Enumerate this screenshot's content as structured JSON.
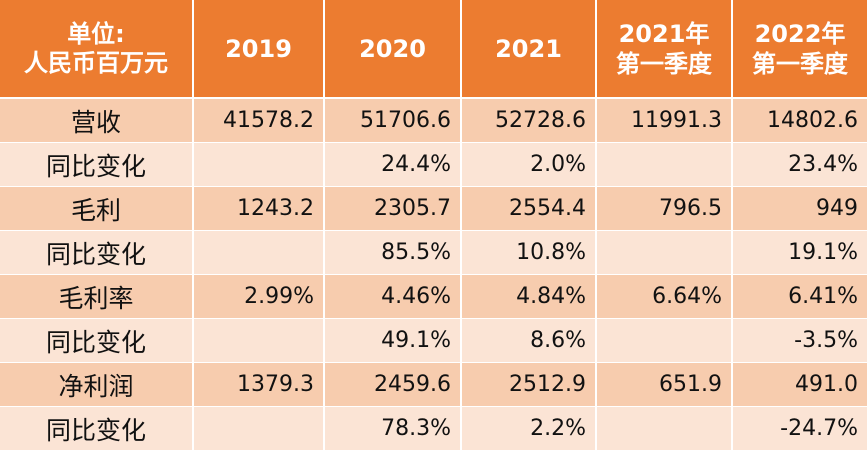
{
  "header": {
    "unit_line1": "单位:",
    "unit_line2": "人民币百万元",
    "col_2019": "2019",
    "col_2020": "2020",
    "col_2021": "2021",
    "col_2021q1_line1": "2021年",
    "col_2021q1_line2": "第一季度",
    "col_2022q1_line1": "2022年",
    "col_2022q1_line2": "第一季度"
  },
  "rows": [
    {
      "label": "营收",
      "y2019": "41578.2",
      "y2020": "51706.6",
      "y2021": "52728.6",
      "q1_2021": "11991.3",
      "q1_2022": "14802.6"
    },
    {
      "label": "同比变化",
      "y2019": "",
      "y2020": "24.4%",
      "y2021": "2.0%",
      "q1_2021": "",
      "q1_2022": "23.4%"
    },
    {
      "label": "毛利",
      "y2019": "1243.2",
      "y2020": "2305.7",
      "y2021": "2554.4",
      "q1_2021": "796.5",
      "q1_2022": "949"
    },
    {
      "label": "同比变化",
      "y2019": "",
      "y2020": "85.5%",
      "y2021": "10.8%",
      "q1_2021": "",
      "q1_2022": "19.1%"
    },
    {
      "label": "毛利率",
      "y2019": "2.99%",
      "y2020": "4.46%",
      "y2021": "4.84%",
      "q1_2021": "6.64%",
      "q1_2022": "6.41%"
    },
    {
      "label": "同比变化",
      "y2019": "",
      "y2020": "49.1%",
      "y2021": "8.6%",
      "q1_2021": "",
      "q1_2022": "-3.5%"
    },
    {
      "label": "净利润",
      "y2019": "1379.3",
      "y2020": "2459.6",
      "y2021": "2512.9",
      "q1_2021": "651.9",
      "q1_2022": "491.0"
    },
    {
      "label": "同比变化",
      "y2019": "",
      "y2020": "78.3%",
      "y2021": "2.2%",
      "q1_2021": "",
      "q1_2022": "-24.7%"
    }
  ],
  "colors": {
    "header_bg": "#ec7c30",
    "row_odd_bg": "#f7ccae",
    "row_even_bg": "#fbe4d5"
  }
}
